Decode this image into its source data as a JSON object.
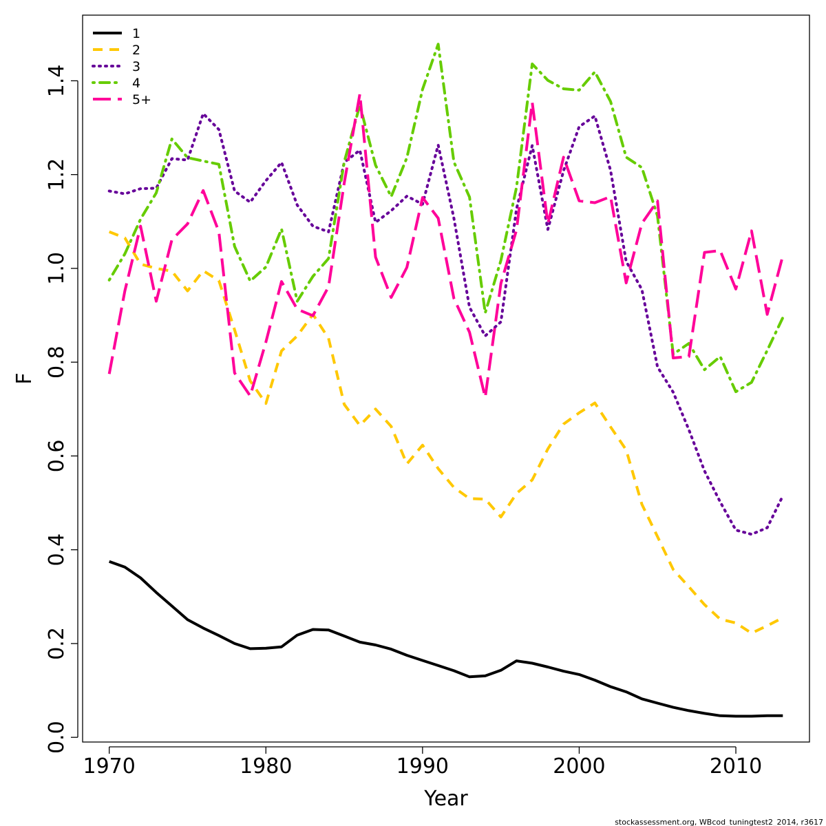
{
  "chart_data": {
    "type": "line",
    "xlabel": "Year",
    "ylabel": "F",
    "xlim": [
      1968.3,
      2014.7
    ],
    "ylim": [
      -0.01,
      1.54
    ],
    "x_ticks": [
      1970,
      1980,
      1990,
      2000,
      2010
    ],
    "x_tick_labels": [
      "1970",
      "1980",
      "1990",
      "2000",
      "2010"
    ],
    "y_ticks": [
      0.0,
      0.2,
      0.4,
      0.6,
      0.8,
      1.0,
      1.2,
      1.4
    ],
    "y_tick_labels": [
      "0.0",
      "0.2",
      "0.4",
      "0.6",
      "0.8",
      "1.0",
      "1.2",
      "1.4"
    ],
    "legend_position": "top-left",
    "grid": false,
    "x": [
      1970,
      1971,
      1972,
      1973,
      1974,
      1975,
      1976,
      1977,
      1978,
      1979,
      1980,
      1981,
      1982,
      1983,
      1984,
      1985,
      1986,
      1987,
      1988,
      1989,
      1990,
      1991,
      1992,
      1993,
      1994,
      1995,
      1996,
      1997,
      1998,
      1999,
      2000,
      2001,
      2002,
      2003,
      2004,
      2005,
      2006,
      2007,
      2008,
      2009,
      2010,
      2011,
      2012,
      2013
    ],
    "series": [
      {
        "name": "1",
        "color": "#000000",
        "dash": "solid",
        "values": [
          0.375,
          0.363,
          0.34,
          0.309,
          0.28,
          0.251,
          0.233,
          0.217,
          0.2,
          0.189,
          0.19,
          0.193,
          0.218,
          0.23,
          0.229,
          0.216,
          0.203,
          0.197,
          0.188,
          0.175,
          0.164,
          0.153,
          0.142,
          0.129,
          0.131,
          0.143,
          0.163,
          0.158,
          0.15,
          0.141,
          0.134,
          0.122,
          0.108,
          0.097,
          0.082,
          0.073,
          0.064,
          0.057,
          0.051,
          0.046,
          0.045,
          0.045,
          0.046,
          0.046
        ]
      },
      {
        "name": "2",
        "color": "#ffc800",
        "dash": "dashed",
        "values": [
          1.078,
          1.065,
          1.009,
          1.0,
          0.994,
          0.952,
          0.995,
          0.974,
          0.869,
          0.76,
          0.712,
          0.824,
          0.856,
          0.902,
          0.851,
          0.71,
          0.665,
          0.7,
          0.663,
          0.583,
          0.623,
          0.573,
          0.533,
          0.509,
          0.508,
          0.47,
          0.52,
          0.549,
          0.615,
          0.668,
          0.692,
          0.713,
          0.662,
          0.613,
          0.497,
          0.428,
          0.358,
          0.321,
          0.283,
          0.252,
          0.244,
          0.222,
          0.238,
          0.255
        ]
      },
      {
        "name": "3",
        "color": "#660099",
        "dash": "dotted",
        "values": [
          1.165,
          1.159,
          1.17,
          1.171,
          1.234,
          1.231,
          1.33,
          1.296,
          1.165,
          1.141,
          1.187,
          1.226,
          1.135,
          1.09,
          1.078,
          1.226,
          1.252,
          1.098,
          1.123,
          1.154,
          1.137,
          1.263,
          1.107,
          0.917,
          0.856,
          0.886,
          1.127,
          1.262,
          1.083,
          1.208,
          1.302,
          1.325,
          1.209,
          1.015,
          0.955,
          0.79,
          0.736,
          0.656,
          0.568,
          0.502,
          0.442,
          0.433,
          0.447,
          0.515
        ]
      },
      {
        "name": "4",
        "color": "#66cc00",
        "dash": "dotdash",
        "values": [
          0.975,
          1.031,
          1.105,
          1.161,
          1.276,
          1.236,
          1.229,
          1.222,
          1.047,
          0.973,
          1.003,
          1.084,
          0.93,
          0.983,
          1.021,
          1.227,
          1.348,
          1.22,
          1.153,
          1.236,
          1.382,
          1.478,
          1.227,
          1.152,
          0.905,
          1.017,
          1.173,
          1.436,
          1.401,
          1.383,
          1.38,
          1.419,
          1.356,
          1.237,
          1.215,
          1.112,
          0.817,
          0.84,
          0.784,
          0.812,
          0.737,
          0.757,
          0.825,
          0.895
        ]
      },
      {
        "name": "5+",
        "color": "#ff0099",
        "dash": "longdash",
        "values": [
          0.775,
          0.952,
          1.09,
          0.93,
          1.061,
          1.095,
          1.166,
          1.078,
          0.777,
          0.728,
          0.843,
          0.972,
          0.913,
          0.899,
          0.961,
          1.182,
          1.372,
          1.024,
          0.938,
          1.002,
          1.151,
          1.107,
          0.936,
          0.864,
          0.725,
          0.968,
          1.082,
          1.354,
          1.095,
          1.237,
          1.144,
          1.14,
          1.153,
          0.969,
          1.096,
          1.144,
          0.809,
          0.812,
          1.034,
          1.038,
          0.956,
          1.08,
          0.902,
          1.027
        ]
      }
    ]
  },
  "footer": "stockassessment.org, WBcod_tuningtest2_2014, r3617"
}
